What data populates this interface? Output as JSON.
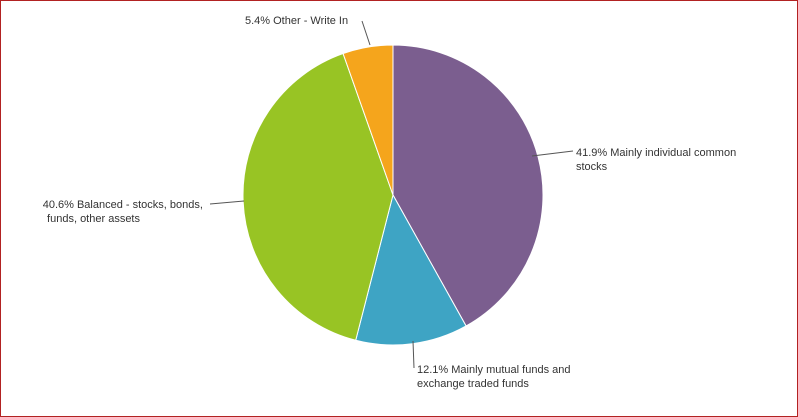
{
  "chart_data": {
    "type": "pie",
    "slices": [
      {
        "label": "Mainly individual common stocks",
        "value": 41.9,
        "color": "#7b5e8f",
        "text_lines": [
          "41.9% Mainly individual common",
          "stocks"
        ]
      },
      {
        "label": "Mainly mutual funds and exchange traded funds",
        "value": 12.1,
        "color": "#3ea4c4",
        "text_lines": [
          "12.1% Mainly mutual funds and",
          "exchange traded funds"
        ]
      },
      {
        "label": "Balanced - stocks, bonds, funds, other assets",
        "value": 40.6,
        "color": "#98c424",
        "text_lines": [
          "40.6% Balanced - stocks, bonds,",
          "funds, other assets"
        ]
      },
      {
        "label": "Other - Write In",
        "value": 5.4,
        "color": "#f5a51c",
        "text_lines": [
          "5.4% Other - Write In"
        ]
      }
    ],
    "start": "top",
    "direction": "clockwise"
  }
}
